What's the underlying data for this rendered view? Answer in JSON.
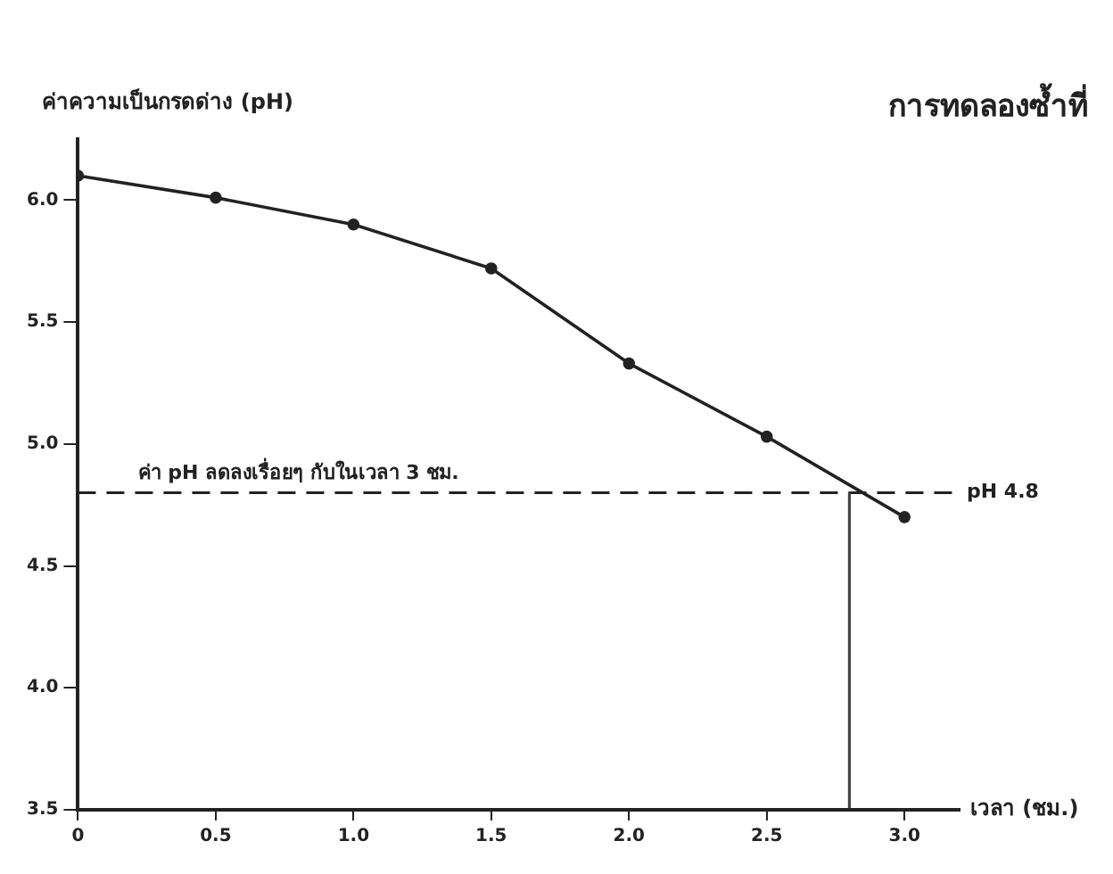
{
  "chart_data": {
    "type": "line",
    "title": "การทดลองซ้ำที่",
    "xlabel": "เวลา (ชม.)",
    "ylabel": "ค่าความเป็นกรดด่าง (pH)",
    "x": [
      0,
      0.5,
      1.0,
      1.5,
      2.0,
      2.5,
      3.0
    ],
    "series": [
      {
        "color": "#222222",
        "values": [
          6.1,
          6.01,
          5.9,
          5.72,
          5.33,
          5.03,
          4.7
        ]
      }
    ],
    "xlim": [
      0,
      3.2
    ],
    "xticks": [
      0,
      {
        "value": 0.5,
        "label": "0.5"
      },
      {
        "value": 1,
        "label": "1.0"
      },
      {
        "value": 1.5,
        "label": "1.5"
      },
      {
        "value": 2,
        "label": "2.0"
      },
      {
        "value": 2.5,
        "label": "2.5"
      },
      {
        "value": 3,
        "label": "3.0"
      }
    ],
    "ylim": [
      3.5,
      6.25
    ],
    "yticks": [
      {
        "value": 3.5,
        "label": "3.5"
      },
      {
        "value": 4,
        "label": "4.0"
      },
      {
        "value": 4.5,
        "label": "4.5"
      },
      {
        "value": 5,
        "label": "5.0"
      },
      {
        "value": 5.5,
        "label": "5.5"
      },
      {
        "value": 6,
        "label": "6.0"
      }
    ],
    "ref_lines": [
      {
        "axis": "y",
        "value": 4.8,
        "label": "pH 4.8",
        "line_style": "dashed",
        "color": "#222222"
      },
      {
        "axis": "x",
        "value": 2.8,
        "label": null,
        "line_style": "solid",
        "color": "#444444"
      }
    ],
    "annotations": [
      {
        "text": "ค่า pH ลดลงเรื่อยๆ กับในเวลา 3 ชม.",
        "x": 0.8,
        "y": 4.8
      }
    ],
    "marker": "circle",
    "line_style": "solid",
    "grid": false,
    "legend": false
  }
}
